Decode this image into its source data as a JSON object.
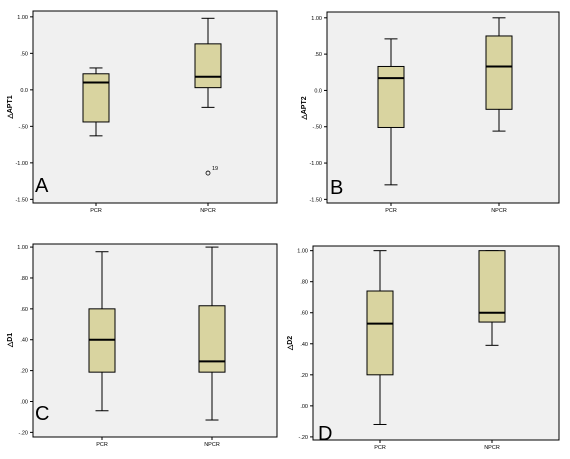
{
  "chart_data": [
    {
      "type": "box",
      "panel_label": "A",
      "ylabel": "△APT1",
      "categories": [
        "PCR",
        "NPCR"
      ],
      "yticks": [
        "1.00",
        ".50",
        "0.0",
        "-.50",
        "-1.00",
        "-1.50"
      ],
      "ylim": [
        -1.55,
        1.08
      ],
      "boxes": [
        {
          "category": "PCR",
          "min": -0.63,
          "q1": -0.44,
          "median": 0.1,
          "q3": 0.22,
          "max": 0.3
        },
        {
          "category": "NPCR",
          "min": -0.24,
          "q1": 0.03,
          "median": 0.18,
          "q3": 0.63,
          "max": 0.98
        }
      ],
      "outliers": [
        {
          "category": "NPCR",
          "value": -1.14,
          "label": "19"
        }
      ]
    },
    {
      "type": "box",
      "panel_label": "B",
      "ylabel": "△APT2",
      "categories": [
        "PCR",
        "NPCR"
      ],
      "yticks": [
        "1.00",
        ".50",
        "0.0",
        "-.50",
        "-1.00",
        "-1.50"
      ],
      "ylim": [
        -1.55,
        1.08
      ],
      "boxes": [
        {
          "category": "PCR",
          "min": -1.3,
          "q1": -0.51,
          "median": 0.17,
          "q3": 0.33,
          "max": 0.71
        },
        {
          "category": "NPCR",
          "min": -0.56,
          "q1": -0.26,
          "median": 0.33,
          "q3": 0.75,
          "max": 1.0
        }
      ],
      "outliers": []
    },
    {
      "type": "box",
      "panel_label": "C",
      "ylabel": "△D1",
      "categories": [
        "PCR",
        "NPCR"
      ],
      "yticks": [
        "1.00",
        ".80",
        ".60",
        ".40",
        ".20",
        ".00",
        "-.20"
      ],
      "ylim": [
        -0.23,
        1.02
      ],
      "boxes": [
        {
          "category": "PCR",
          "min": -0.06,
          "q1": 0.19,
          "median": 0.4,
          "q3": 0.6,
          "max": 0.97
        },
        {
          "category": "NPCR",
          "min": -0.12,
          "q1": 0.19,
          "median": 0.26,
          "q3": 0.62,
          "max": 1.0
        }
      ],
      "outliers": []
    },
    {
      "type": "box",
      "panel_label": "D",
      "ylabel": "△D2",
      "categories": [
        "PCR",
        "NPCR"
      ],
      "yticks": [
        "1.00",
        ".80",
        ".60",
        ".40",
        ".20",
        ".00",
        "-.20"
      ],
      "ylim": [
        -0.22,
        1.03
      ],
      "boxes": [
        {
          "category": "PCR",
          "min": -0.12,
          "q1": 0.2,
          "median": 0.53,
          "q3": 0.74,
          "max": 1.0
        },
        {
          "category": "NPCR",
          "min": 0.39,
          "q1": 0.54,
          "median": 0.6,
          "q3": 1.0,
          "max": 1.0
        }
      ],
      "outliers": []
    }
  ]
}
